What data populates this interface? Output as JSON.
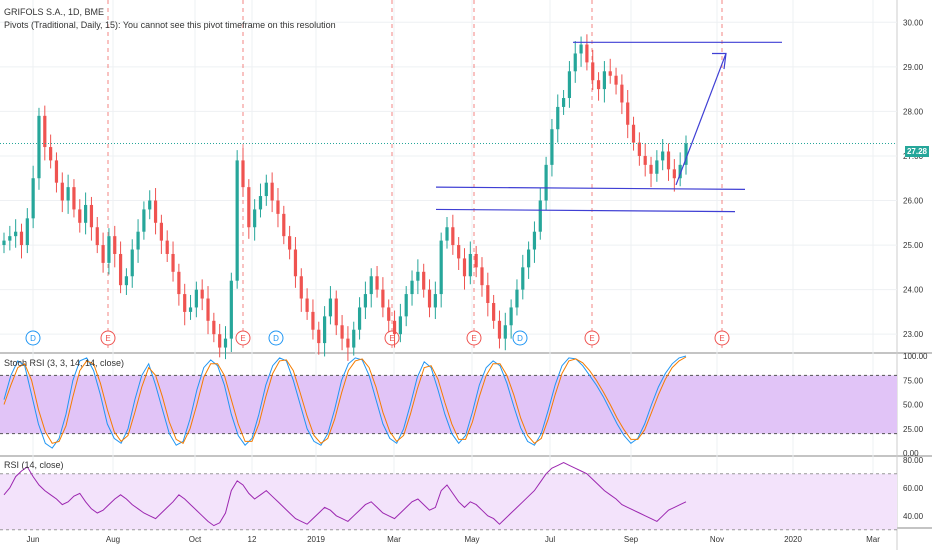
{
  "header": {
    "title": "GRIFOLS S.A., 1D, BME",
    "subtitle": "Pivots (Traditional, Daily, 15): You cannot see this pivot timeframe on this resolution"
  },
  "colors": {
    "up": "#26a69a",
    "down": "#ef5350",
    "trendline": "#3f3fd4",
    "stoch_band": "#e1c4f7",
    "rsi_band": "#f3e3fb",
    "stoch_k": "#2196f3",
    "stoch_d": "#f57c00",
    "rsi_line": "#9c27b0",
    "last_price_line": "#26a69a"
  },
  "price_pane": {
    "last_price": "27.28",
    "y_ticks": [
      "30.00",
      "29.00",
      "28.00",
      "27.00",
      "26.00",
      "25.00",
      "24.00",
      "23.00"
    ],
    "event_markers": [
      {
        "label": "D",
        "type": "dividend"
      },
      {
        "label": "E",
        "type": "earnings"
      },
      {
        "label": "E",
        "type": "earnings"
      },
      {
        "label": "D",
        "type": "dividend"
      },
      {
        "label": "E",
        "type": "earnings"
      },
      {
        "label": "E",
        "type": "earnings"
      },
      {
        "label": "D",
        "type": "dividend"
      },
      {
        "label": "E",
        "type": "earnings"
      },
      {
        "label": "E",
        "type": "earnings"
      }
    ]
  },
  "stoch_pane": {
    "title": "Stoch RSI (3, 3, 14, 14, close)",
    "y_ticks": [
      "100.00",
      "75.00",
      "50.00",
      "25.00",
      "0.00"
    ]
  },
  "rsi_pane": {
    "title": "RSI (14, close)",
    "y_ticks": [
      "80.00",
      "60.00",
      "40.00"
    ]
  },
  "x_axis": {
    "labels": [
      "Jun",
      "Aug",
      "Oct",
      "12",
      "2019",
      "Mar",
      "May",
      "Jul",
      "Sep",
      "Nov",
      "2020",
      "Mar"
    ]
  },
  "chart_data": [
    {
      "type": "candlestick",
      "title": "GRIFOLS S.A., 1D, BME",
      "ylim": [
        22.6,
        30.5
      ],
      "series": [
        {
          "name": "close",
          "values": [
            25.1,
            25.2,
            25.3,
            25.0,
            25.6,
            26.5,
            27.9,
            27.2,
            26.9,
            26.4,
            26.0,
            26.3,
            25.8,
            25.5,
            25.9,
            25.4,
            25.0,
            24.6,
            25.2,
            24.8,
            24.1,
            24.3,
            24.9,
            25.3,
            25.8,
            26.0,
            25.5,
            25.1,
            24.8,
            24.4,
            23.9,
            23.5,
            23.6,
            24.0,
            23.8,
            23.3,
            23.0,
            22.7,
            22.9,
            24.2,
            26.9,
            26.3,
            25.4,
            25.8,
            26.1,
            26.4,
            26.0,
            25.7,
            25.2,
            24.9,
            24.3,
            23.8,
            23.5,
            23.1,
            22.8,
            23.4,
            23.8,
            23.2,
            22.9,
            22.7,
            23.1,
            23.6,
            23.9,
            24.3,
            24.0,
            23.6,
            23.3,
            23.0,
            23.4,
            23.9,
            24.2,
            24.4,
            24.0,
            23.6,
            23.9,
            25.1,
            25.4,
            25.0,
            24.7,
            24.3,
            24.8,
            24.5,
            24.1,
            23.7,
            23.3,
            22.9,
            23.2,
            23.6,
            24.0,
            24.5,
            24.9,
            25.3,
            26.0,
            26.8,
            27.6,
            28.1,
            28.3,
            28.9,
            29.3,
            29.5,
            29.1,
            28.7,
            28.5,
            28.9,
            28.8,
            28.6,
            28.2,
            27.7,
            27.3,
            27.0,
            26.8,
            26.6,
            26.9,
            27.1,
            26.7,
            26.5,
            26.8,
            27.28
          ]
        }
      ]
    },
    {
      "type": "line",
      "title": "Stoch RSI (3, 3, 14, 14, close)",
      "ylim": [
        0,
        100
      ],
      "series": [
        {
          "name": "K",
          "values": [
            55,
            80,
            95,
            90,
            60,
            30,
            10,
            5,
            15,
            40,
            75,
            95,
            98,
            85,
            60,
            30,
            15,
            10,
            25,
            55,
            80,
            92,
            70,
            45,
            20,
            8,
            12,
            35,
            65,
            88,
            96,
            90,
            70,
            40,
            18,
            8,
            15,
            40,
            70,
            90,
            98,
            95,
            75,
            50,
            25,
            12,
            8,
            20,
            45,
            75,
            92,
            98,
            96,
            80,
            55,
            30,
            15,
            10,
            25,
            50,
            78,
            94,
            88,
            65,
            40,
            20,
            10,
            18,
            42,
            70,
            88,
            95,
            90,
            72,
            48,
            26,
            12,
            8,
            20,
            44,
            70,
            90,
            98,
            97,
            90,
            80,
            70,
            58,
            44,
            30,
            18,
            10,
            15,
            30,
            50,
            68,
            82,
            92,
            98,
            100
          ]
        },
        {
          "name": "D",
          "values": [
            50,
            70,
            88,
            92,
            75,
            45,
            22,
            10,
            12,
            28,
            58,
            85,
            95,
            92,
            72,
            45,
            22,
            12,
            18,
            42,
            68,
            88,
            80,
            58,
            32,
            14,
            10,
            25,
            50,
            78,
            92,
            92,
            80,
            55,
            30,
            12,
            12,
            30,
            58,
            82,
            95,
            96,
            85,
            62,
            38,
            18,
            10,
            15,
            35,
            62,
            85,
            95,
            97,
            88,
            68,
            42,
            22,
            12,
            18,
            40,
            66,
            88,
            90,
            76,
            52,
            30,
            14,
            14,
            32,
            58,
            80,
            92,
            92,
            80,
            60,
            36,
            18,
            10,
            15,
            35,
            60,
            82,
            95,
            97,
            93,
            85,
            75,
            63,
            50,
            36,
            24,
            14,
            14,
            24,
            42,
            60,
            76,
            88,
            95,
            99
          ]
        }
      ]
    },
    {
      "type": "line",
      "title": "RSI (14, close)",
      "ylim": [
        30,
        80
      ],
      "series": [
        {
          "name": "RSI",
          "values": [
            55,
            60,
            68,
            72,
            75,
            68,
            62,
            58,
            55,
            52,
            48,
            50,
            54,
            56,
            50,
            45,
            42,
            44,
            48,
            52,
            55,
            52,
            48,
            45,
            42,
            40,
            38,
            42,
            46,
            50,
            55,
            52,
            48,
            44,
            40,
            36,
            33,
            35,
            42,
            58,
            65,
            62,
            56,
            52,
            55,
            58,
            54,
            50,
            46,
            42,
            38,
            36,
            34,
            38,
            42,
            46,
            44,
            40,
            38,
            36,
            40,
            44,
            48,
            50,
            46,
            42,
            40,
            38,
            42,
            46,
            50,
            52,
            48,
            44,
            46,
            58,
            62,
            56,
            50,
            46,
            50,
            48,
            44,
            40,
            38,
            34,
            38,
            42,
            46,
            50,
            54,
            58,
            64,
            70,
            74,
            76,
            78,
            76,
            74,
            72,
            70,
            66,
            62,
            58,
            55,
            52,
            48,
            46,
            44,
            42,
            40,
            38,
            36,
            40,
            44,
            46,
            48,
            50
          ]
        }
      ]
    }
  ]
}
